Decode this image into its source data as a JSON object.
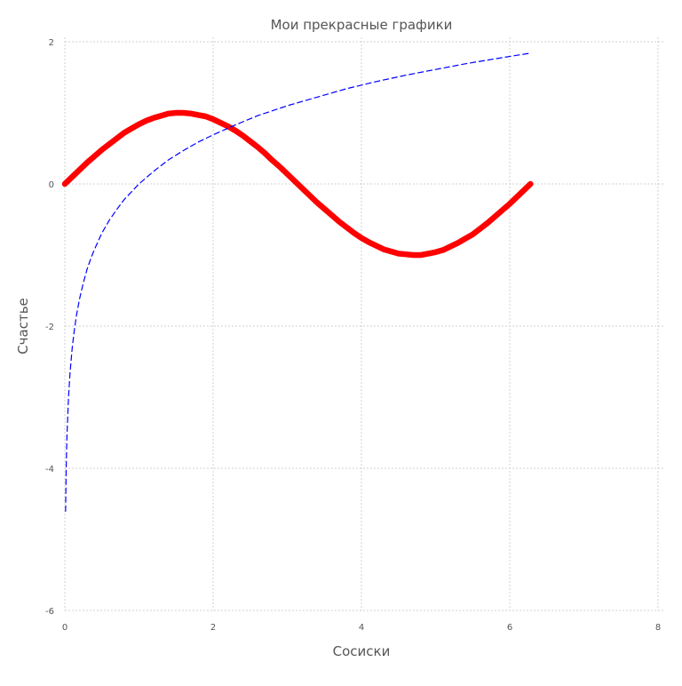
{
  "chart_data": {
    "type": "line",
    "title": "Мои прекрасные графики",
    "xlabel": "Сосиски",
    "ylabel": "Счастье",
    "xlim": [
      0,
      8
    ],
    "ylim": [
      -6,
      2
    ],
    "x_ticks": [
      0,
      2,
      4,
      6,
      8
    ],
    "y_ticks": [
      -6,
      -4,
      -2,
      0,
      2
    ],
    "x_tick_labels": [
      "0",
      "2",
      "4",
      "6",
      "8"
    ],
    "y_tick_labels": [
      "-6",
      "-4",
      "-2",
      "0",
      "2"
    ],
    "grid": true,
    "legend": "none",
    "series": [
      {
        "function": "sin(x)",
        "color": "#ff0000",
        "line_style": "solid",
        "x": [
          0.0,
          0.1,
          0.2,
          0.3,
          0.4,
          0.5,
          0.6,
          0.7,
          0.8,
          0.9,
          1.0,
          1.1,
          1.2,
          1.3,
          1.4,
          1.5,
          1.6,
          1.7,
          1.8,
          1.9,
          2.0,
          2.1,
          2.2,
          2.3,
          2.4,
          2.5,
          2.6,
          2.7,
          2.8,
          2.9,
          3.0,
          3.1,
          3.2,
          3.3,
          3.4,
          3.5,
          3.6,
          3.7,
          3.8,
          3.9,
          4.0,
          4.1,
          4.2,
          4.3,
          4.4,
          4.5,
          4.6,
          4.7,
          4.8,
          4.9,
          5.0,
          5.1,
          5.2,
          5.3,
          5.4,
          5.5,
          5.6,
          5.7,
          5.8,
          5.9,
          6.0,
          6.1,
          6.2,
          6.28
        ],
        "y": [
          0.0,
          0.1,
          0.2,
          0.3,
          0.39,
          0.48,
          0.56,
          0.64,
          0.72,
          0.78,
          0.84,
          0.89,
          0.93,
          0.96,
          0.99,
          1.0,
          1.0,
          0.99,
          0.97,
          0.95,
          0.91,
          0.86,
          0.81,
          0.75,
          0.68,
          0.6,
          0.52,
          0.43,
          0.33,
          0.24,
          0.14,
          0.04,
          -0.06,
          -0.16,
          -0.26,
          -0.35,
          -0.44,
          -0.53,
          -0.61,
          -0.69,
          -0.76,
          -0.82,
          -0.87,
          -0.92,
          -0.95,
          -0.98,
          -0.99,
          -1.0,
          -1.0,
          -0.98,
          -0.96,
          -0.93,
          -0.88,
          -0.83,
          -0.77,
          -0.71,
          -0.63,
          -0.55,
          -0.46,
          -0.37,
          -0.28,
          -0.18,
          -0.08,
          0.0
        ]
      },
      {
        "function": "log(x)",
        "color": "#0000ff",
        "line_style": "dashed",
        "x": [
          0.01,
          0.02,
          0.03,
          0.05,
          0.07,
          0.1,
          0.13,
          0.16,
          0.2,
          0.25,
          0.3,
          0.35,
          0.4,
          0.5,
          0.6,
          0.7,
          0.8,
          0.9,
          1.0,
          1.2,
          1.4,
          1.6,
          1.8,
          2.0,
          2.3,
          2.6,
          3.0,
          3.4,
          3.8,
          4.2,
          4.6,
          5.0,
          5.4,
          5.8,
          6.28
        ],
        "y": [
          -4.61,
          -3.91,
          -3.51,
          -3.0,
          -2.66,
          -2.3,
          -2.04,
          -1.83,
          -1.61,
          -1.39,
          -1.2,
          -1.05,
          -0.92,
          -0.69,
          -0.51,
          -0.36,
          -0.22,
          -0.11,
          0.0,
          0.18,
          0.34,
          0.47,
          0.59,
          0.69,
          0.83,
          0.96,
          1.1,
          1.22,
          1.34,
          1.44,
          1.53,
          1.61,
          1.69,
          1.76,
          1.84
        ]
      }
    ]
  }
}
